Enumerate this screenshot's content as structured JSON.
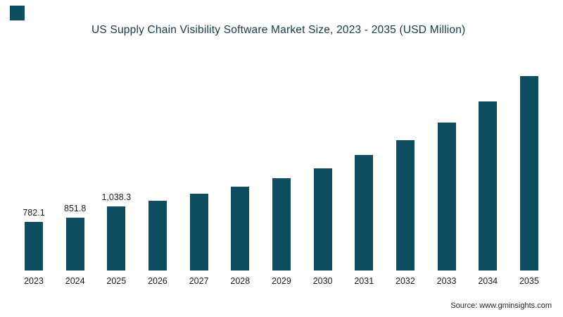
{
  "accent_color": "#0e4d5f",
  "header": {
    "title": "US Supply Chain Visibility Software Market Size, 2023 - 2035 (USD Million)"
  },
  "footer": {
    "source": "Source: www.gminsights.com"
  },
  "chart_data": {
    "type": "bar",
    "title": "US Supply Chain Visibility Software Market Size, 2023 - 2035 (USD Million)",
    "categories": [
      "2023",
      "2024",
      "2025",
      "2026",
      "2027",
      "2028",
      "2029",
      "2030",
      "2031",
      "2032",
      "2033",
      "2034",
      "2035"
    ],
    "values": [
      782.1,
      851.8,
      1038.3,
      1125,
      1240,
      1355,
      1490,
      1650,
      1875,
      2110,
      2390,
      2740,
      3145
    ],
    "data_labels": [
      "782.1",
      "851.8",
      "1,038.3",
      "",
      "",
      "",
      "",
      "",
      "",
      "",
      "",
      "",
      ""
    ],
    "xlabel": "",
    "ylabel": "",
    "ylim": [
      0,
      3250
    ],
    "bar_color": "#0e4d5f",
    "grid": false,
    "legend": false,
    "source": "Source: www.gminsights.com"
  }
}
